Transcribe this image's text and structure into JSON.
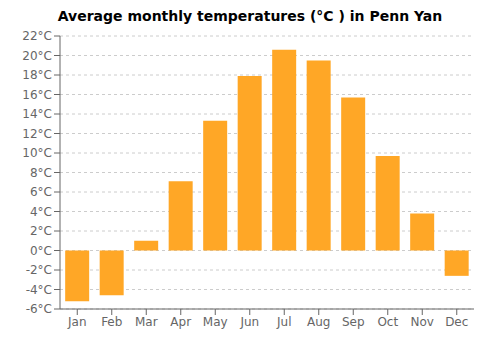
{
  "chart_data": {
    "type": "bar",
    "title": "Average monthly temperatures (°C ) in Penn Yan",
    "categories": [
      "Jan",
      "Feb",
      "Mar",
      "Apr",
      "May",
      "Jun",
      "Jul",
      "Aug",
      "Sep",
      "Oct",
      "Nov",
      "Dec"
    ],
    "values": [
      -5.2,
      -4.6,
      1.0,
      7.1,
      13.3,
      17.9,
      20.6,
      19.5,
      15.7,
      9.7,
      3.8,
      -2.6
    ],
    "color": "#FFA726",
    "ylim": [
      -6,
      22
    ],
    "yticks": [
      {
        "value": -6,
        "label": "-6°C"
      },
      {
        "value": -4,
        "label": "-4°C"
      },
      {
        "value": -2,
        "label": "-2°C"
      },
      {
        "value": 0,
        "label": "0°C"
      },
      {
        "value": 2,
        "label": "2°C"
      },
      {
        "value": 4,
        "label": "4°C"
      },
      {
        "value": 6,
        "label": "6°C"
      },
      {
        "value": 8,
        "label": "8°C"
      },
      {
        "value": 10,
        "label": "10°C"
      },
      {
        "value": 12,
        "label": "12°C"
      },
      {
        "value": 14,
        "label": "14°C"
      },
      {
        "value": 16,
        "label": "16°C"
      },
      {
        "value": 18,
        "label": "18°C"
      },
      {
        "value": 20,
        "label": "20°C"
      },
      {
        "value": 22,
        "label": "22°C"
      }
    ],
    "grid": true
  }
}
